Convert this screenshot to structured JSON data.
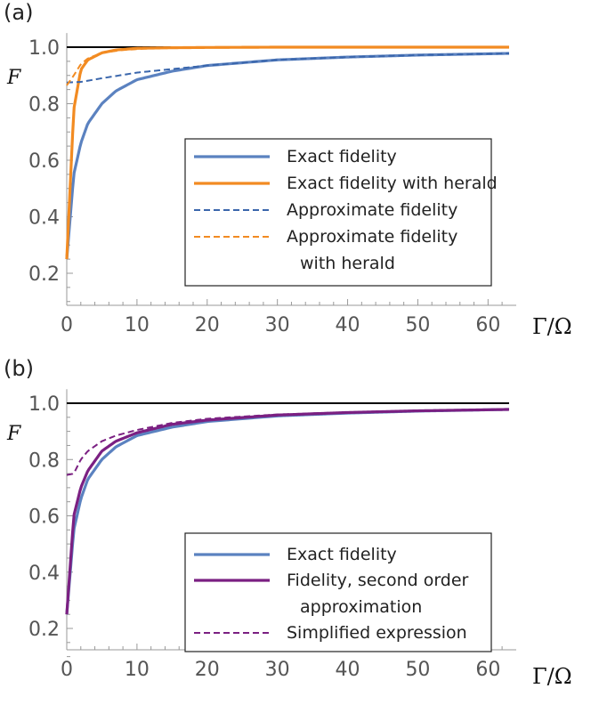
{
  "chart_data": [
    {
      "type": "line",
      "panel_label": "(a)",
      "ylabel": "F",
      "xlabel": "Γ/Ω",
      "xlim": [
        0,
        63
      ],
      "ylim": [
        0.1,
        1.05
      ],
      "xticks": [
        "0",
        "10",
        "20",
        "30",
        "40",
        "50",
        "60"
      ],
      "yticks": [
        "0.2",
        "0.4",
        "0.6",
        "0.8",
        "1.0"
      ],
      "reference_line": 1.0,
      "legend": [
        "Exact fidelity",
        "Exact fidelity with herald",
        "Approximate fidelity",
        "Approximate fidelity",
        "with herald"
      ],
      "series": [
        {
          "name": "Exact fidelity",
          "style": "solid",
          "color": "#5b82c0",
          "x": [
            0,
            1,
            2,
            3,
            5,
            7,
            10,
            15,
            20,
            30,
            40,
            50,
            63
          ],
          "values": [
            0.25,
            0.55,
            0.66,
            0.73,
            0.8,
            0.845,
            0.885,
            0.915,
            0.935,
            0.955,
            0.965,
            0.972,
            0.978
          ]
        },
        {
          "name": "Exact fidelity with herald",
          "style": "solid",
          "color": "#f28b22",
          "x": [
            0,
            1,
            2,
            3,
            5,
            7,
            10,
            15,
            20,
            30,
            63
          ],
          "values": [
            0.25,
            0.78,
            0.92,
            0.955,
            0.98,
            0.99,
            0.996,
            0.998,
            0.999,
            1.0,
            1.0
          ]
        },
        {
          "name": "Approximate fidelity",
          "style": "dashed",
          "color": "#3a66ac",
          "x": [
            0,
            2,
            5,
            10,
            20,
            30,
            40,
            50,
            63
          ],
          "values": [
            0.875,
            0.877,
            0.89,
            0.91,
            0.935,
            0.955,
            0.965,
            0.972,
            0.978
          ]
        },
        {
          "name": "Approximate fidelity with herald",
          "style": "dashed",
          "color": "#f28b22",
          "x": [
            0,
            1,
            2,
            3,
            5,
            8,
            12,
            20,
            63
          ],
          "values": [
            0.865,
            0.9,
            0.94,
            0.96,
            0.98,
            0.99,
            0.996,
            0.999,
            1.0
          ]
        }
      ]
    },
    {
      "type": "line",
      "panel_label": "(b)",
      "ylabel": "F",
      "xlabel": "Γ/Ω",
      "xlim": [
        0,
        63
      ],
      "ylim": [
        0.1,
        1.05
      ],
      "xticks": [
        "0",
        "10",
        "20",
        "30",
        "40",
        "50",
        "60"
      ],
      "yticks": [
        "0.2",
        "0.4",
        "0.6",
        "0.8",
        "1.0"
      ],
      "reference_line": 1.0,
      "legend": [
        "Exact fidelity",
        "Fidelity, second order",
        "approximation",
        "Simplified expression"
      ],
      "series": [
        {
          "name": "Exact fidelity",
          "style": "solid",
          "color": "#5b82c0",
          "x": [
            0,
            1,
            2,
            3,
            5,
            7,
            10,
            15,
            20,
            30,
            40,
            50,
            63
          ],
          "values": [
            0.25,
            0.55,
            0.66,
            0.73,
            0.8,
            0.845,
            0.885,
            0.915,
            0.935,
            0.955,
            0.965,
            0.972,
            0.978
          ]
        },
        {
          "name": "Fidelity, second order approximation",
          "style": "solid",
          "color": "#7b2082",
          "x": [
            0,
            1,
            2,
            3,
            5,
            7,
            10,
            15,
            20,
            30,
            40,
            50,
            63
          ],
          "values": [
            0.25,
            0.6,
            0.7,
            0.76,
            0.83,
            0.865,
            0.895,
            0.925,
            0.94,
            0.958,
            0.967,
            0.973,
            0.978
          ]
        },
        {
          "name": "Simplified expression",
          "style": "dashed",
          "color": "#7b2082",
          "x": [
            0,
            1,
            2,
            3,
            5,
            7,
            10,
            15,
            20,
            30,
            40,
            50,
            63
          ],
          "values": [
            0.745,
            0.75,
            0.8,
            0.83,
            0.865,
            0.885,
            0.905,
            0.93,
            0.945,
            0.96,
            0.968,
            0.974,
            0.979
          ]
        }
      ]
    }
  ]
}
